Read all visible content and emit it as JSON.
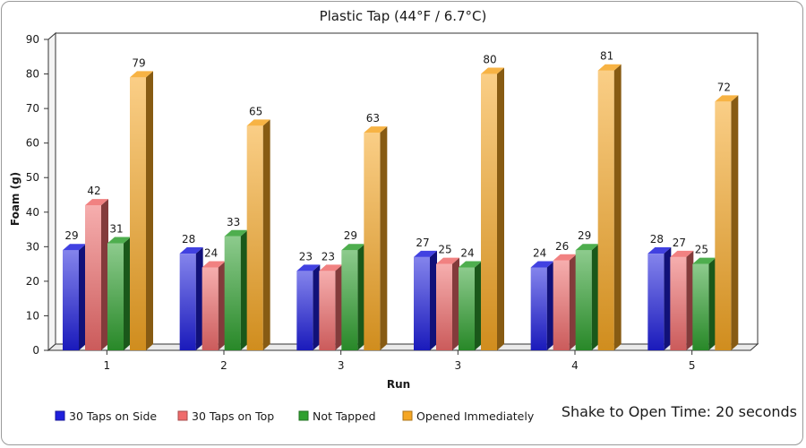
{
  "chart_data": {
    "type": "bar",
    "title": "Plastic Tap (44°F / 6.7°C)",
    "xlabel": "Run",
    "ylabel": "Foam (g)",
    "ylim": [
      0,
      90
    ],
    "yticks": [
      0,
      10,
      20,
      30,
      40,
      50,
      60,
      70,
      80,
      90
    ],
    "categories": [
      "1",
      "2",
      "3",
      "3",
      "4",
      "5"
    ],
    "series": [
      {
        "name": "30 Taps on Side",
        "color": "#1f1fdc",
        "values": [
          29,
          28,
          23,
          27,
          24,
          28
        ]
      },
      {
        "name": "30 Taps on Top",
        "color": "#ef6b6b",
        "values": [
          42,
          24,
          23,
          25,
          26,
          27
        ]
      },
      {
        "name": "Not Tapped",
        "color": "#2fa02f",
        "values": [
          31,
          33,
          29,
          24,
          29,
          25
        ]
      },
      {
        "name": "Opened Immediately",
        "color": "#f5a623",
        "values": [
          79,
          65,
          63,
          80,
          81,
          72
        ]
      }
    ],
    "legend_position": "bottom-left",
    "grid": false,
    "style": "3d-bar"
  },
  "note": "Shake to Open Time: 20 seconds"
}
